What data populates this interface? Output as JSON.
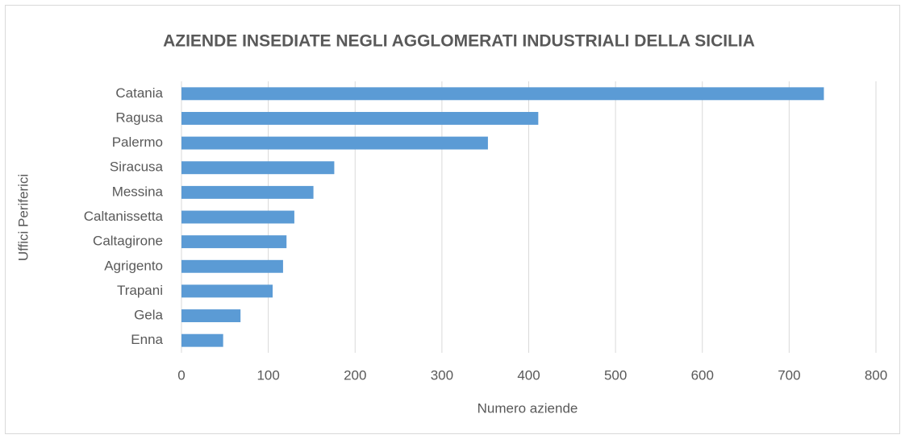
{
  "chart_data": {
    "type": "barh",
    "title": "AZIENDE INSEDIATE NEGLI AGGLOMERATI INDUSTRIALI DELLA SICILIA",
    "xlabel": "Numero aziende",
    "ylabel": "Uffici Periferici",
    "categories": [
      "Catania",
      "Ragusa",
      "Palermo",
      "Siracusa",
      "Messina",
      "Caltanissetta",
      "Caltagirone",
      "Agrigento",
      "Trapani",
      "Gela",
      "Enna"
    ],
    "values": [
      740,
      411,
      353,
      176,
      152,
      130,
      121,
      117,
      105,
      68,
      48
    ],
    "color": "#5b9bd5",
    "xlim": [
      0,
      800
    ],
    "xticks": [
      0,
      100,
      200,
      300,
      400,
      500,
      600,
      700,
      800
    ],
    "grid": true
  }
}
